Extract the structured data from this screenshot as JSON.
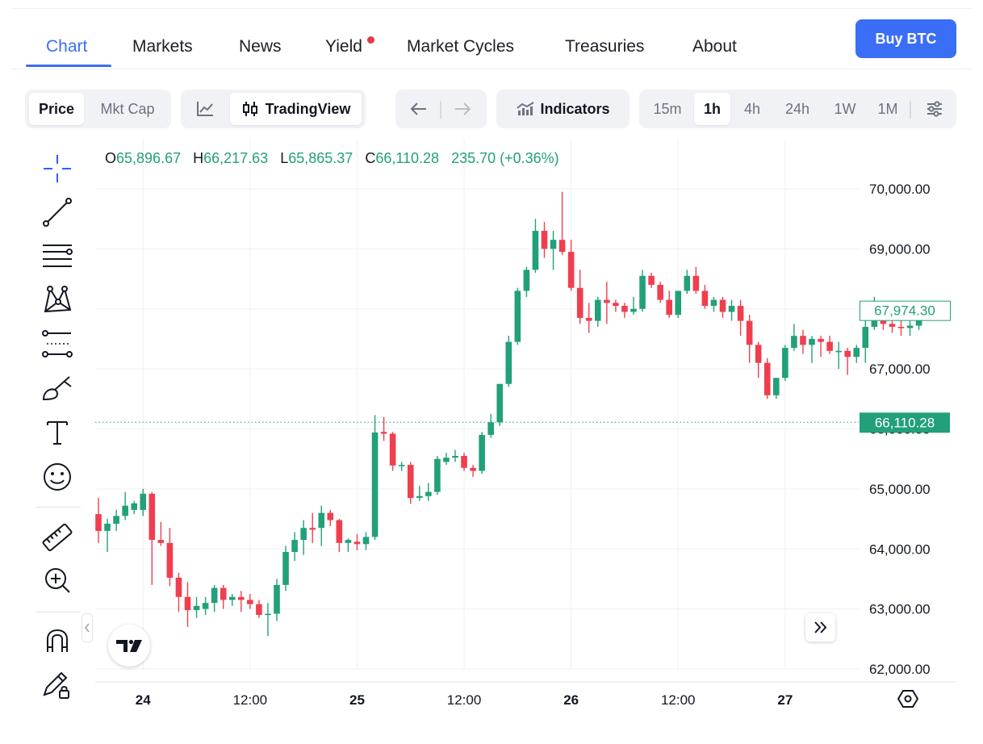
{
  "nav": {
    "tabs": [
      {
        "label": "Chart",
        "active": true
      },
      {
        "label": "Markets"
      },
      {
        "label": "News"
      },
      {
        "label": "Yield",
        "has_dot": true
      },
      {
        "label": "Market Cycles"
      },
      {
        "label": "Treasuries"
      },
      {
        "label": "About"
      }
    ],
    "buy_label": "Buy BTC"
  },
  "toolbar": {
    "metric": {
      "options": [
        "Price",
        "Mkt Cap"
      ],
      "selected": "Price"
    },
    "chart_style": {
      "tradingview_label": "TradingView",
      "selected": "TradingView"
    },
    "indicators_label": "Indicators",
    "intervals": [
      "15m",
      "1h",
      "4h",
      "24h",
      "1W",
      "1M"
    ],
    "selected_interval": "1h"
  },
  "legend": {
    "o_key": "O",
    "o": "65,896.67",
    "h_key": "H",
    "h": "66,217.63",
    "l_key": "L",
    "l": "65,865.37",
    "c_key": "C",
    "c": "66,110.28",
    "change": "235.70 (+0.36%)"
  },
  "colors": {
    "up": "#22a07a",
    "down": "#ef3f4f",
    "accent": "#3b6ef6"
  },
  "chart_data": {
    "type": "candlestick",
    "interval": "1h",
    "ylim": [
      61800,
      70300
    ],
    "y_ticks": [
      62000,
      63000,
      64000,
      65000,
      66000,
      67000,
      68000,
      69000,
      70000
    ],
    "y_tick_labels": [
      "62,000.00",
      "63,000.00",
      "64,000.00",
      "65,000.00",
      "66,000.00",
      "67,000.00",
      "68,000.00",
      "69,000.00",
      "70,000.00"
    ],
    "x_ticks": [
      {
        "label": "24",
        "bold": true,
        "index": 5
      },
      {
        "label": "12:00",
        "bold": false,
        "index": 17
      },
      {
        "label": "25",
        "bold": true,
        "index": 29
      },
      {
        "label": "12:00",
        "bold": false,
        "index": 41
      },
      {
        "label": "26",
        "bold": true,
        "index": 53
      },
      {
        "label": "12:00",
        "bold": false,
        "index": 65
      },
      {
        "label": "27",
        "bold": true,
        "index": 77
      }
    ],
    "candles": [
      [
        64580,
        64850,
        64100,
        64300
      ],
      [
        64300,
        64500,
        63950,
        64420
      ],
      [
        64420,
        64650,
        64300,
        64550
      ],
      [
        64550,
        64950,
        64480,
        64720
      ],
      [
        64650,
        64800,
        64580,
        64760
      ],
      [
        64650,
        65000,
        64550,
        64920
      ],
      [
        64920,
        64950,
        63400,
        64150
      ],
      [
        64150,
        64450,
        64050,
        64100
      ],
      [
        64100,
        64350,
        63380,
        63520
      ],
      [
        63520,
        63600,
        62950,
        63200
      ],
      [
        63200,
        63450,
        62700,
        62980
      ],
      [
        62980,
        63200,
        62850,
        63050
      ],
      [
        63000,
        63200,
        62900,
        63100
      ],
      [
        63100,
        63400,
        62950,
        63350
      ],
      [
        63350,
        63400,
        63000,
        63150
      ],
      [
        63150,
        63250,
        63050,
        63200
      ],
      [
        63200,
        63300,
        62950,
        63150
      ],
      [
        63150,
        63250,
        63000,
        63080
      ],
      [
        63080,
        63150,
        62850,
        62900
      ],
      [
        62900,
        63100,
        62550,
        62920
      ],
      [
        62920,
        63500,
        62800,
        63400
      ],
      [
        63400,
        64050,
        63300,
        63950
      ],
      [
        63950,
        64280,
        63800,
        64150
      ],
      [
        64150,
        64480,
        63900,
        64350
      ],
      [
        64350,
        64600,
        64100,
        64320
      ],
      [
        64350,
        64720,
        64050,
        64600
      ],
      [
        64600,
        64650,
        64380,
        64480
      ],
      [
        64480,
        64500,
        63950,
        64100
      ],
      [
        64100,
        64180,
        63950,
        64150
      ],
      [
        64120,
        64250,
        63980,
        64080
      ],
      [
        64080,
        64280,
        63980,
        64200
      ],
      [
        64200,
        66230,
        64150,
        65940
      ],
      [
        65950,
        66200,
        65800,
        65920
      ],
      [
        65920,
        65950,
        65300,
        65390
      ],
      [
        65390,
        65450,
        65300,
        65400
      ],
      [
        65400,
        65450,
        64750,
        64850
      ],
      [
        64850,
        65050,
        64800,
        64880
      ],
      [
        64880,
        65100,
        64800,
        64950
      ],
      [
        64950,
        65550,
        64900,
        65500
      ],
      [
        65450,
        65600,
        65400,
        65520
      ],
      [
        65520,
        65650,
        65450,
        65550
      ],
      [
        65550,
        65600,
        65300,
        65350
      ],
      [
        65350,
        65400,
        65200,
        65300
      ],
      [
        65300,
        65950,
        65250,
        65900
      ],
      [
        65900,
        66250,
        65850,
        66110
      ],
      [
        66110,
        66700,
        66050,
        66750
      ],
      [
        66750,
        67550,
        66700,
        67450
      ],
      [
        67450,
        68350,
        67400,
        68300
      ],
      [
        68300,
        68700,
        68200,
        68650
      ],
      [
        68650,
        69500,
        68600,
        69300
      ],
      [
        69300,
        69450,
        68850,
        69000
      ],
      [
        69000,
        69300,
        68650,
        69150
      ],
      [
        69150,
        69950,
        68900,
        68950
      ],
      [
        68950,
        69150,
        68300,
        68350
      ],
      [
        68350,
        68650,
        67750,
        67850
      ],
      [
        67850,
        68100,
        67600,
        67800
      ],
      [
        67800,
        68200,
        67700,
        68150
      ],
      [
        68150,
        68450,
        67750,
        68100
      ],
      [
        68100,
        68150,
        67950,
        68050
      ],
      [
        68050,
        68100,
        67850,
        67950
      ],
      [
        67950,
        68200,
        67900,
        68000
      ],
      [
        68000,
        68650,
        67950,
        68550
      ],
      [
        68550,
        68600,
        68350,
        68400
      ],
      [
        68400,
        68450,
        68100,
        68150
      ],
      [
        68150,
        68300,
        67850,
        67900
      ],
      [
        67900,
        68300,
        67850,
        68300
      ],
      [
        68300,
        68650,
        68250,
        68550
      ],
      [
        68550,
        68700,
        68250,
        68300
      ],
      [
        68300,
        68400,
        68000,
        68050
      ],
      [
        68050,
        68200,
        67950,
        68150
      ],
      [
        68150,
        68200,
        67850,
        67950
      ],
      [
        67950,
        68150,
        67800,
        68050
      ],
      [
        68050,
        68150,
        67550,
        67800
      ],
      [
        67800,
        67900,
        67100,
        67400
      ],
      [
        67400,
        67450,
        66850,
        67100
      ],
      [
        67100,
        67180,
        66500,
        66560
      ],
      [
        66560,
        66850,
        66500,
        66850
      ],
      [
        66850,
        67400,
        66800,
        67350
      ],
      [
        67350,
        67750,
        67300,
        67550
      ],
      [
        67550,
        67650,
        67250,
        67400
      ],
      [
        67400,
        67550,
        67100,
        67500
      ],
      [
        67500,
        67550,
        67200,
        67450
      ],
      [
        67450,
        67550,
        67250,
        67300
      ],
      [
        67300,
        67450,
        67000,
        67300
      ],
      [
        67300,
        67350,
        66900,
        67200
      ],
      [
        67200,
        67400,
        67100,
        67350
      ],
      [
        67350,
        67800,
        67100,
        67700
      ],
      [
        67700,
        68200,
        67650,
        67800
      ],
      [
        67800,
        67900,
        67650,
        67750
      ],
      [
        67750,
        67850,
        67600,
        67700
      ],
      [
        67700,
        67800,
        67550,
        67680
      ],
      [
        67680,
        67800,
        67550,
        67720
      ],
      [
        67720,
        68000,
        67650,
        67974.3
      ]
    ],
    "last_price_label": "67,974.30",
    "crosshair_label": "66,110.28",
    "crosshair_value": 66110.28
  }
}
